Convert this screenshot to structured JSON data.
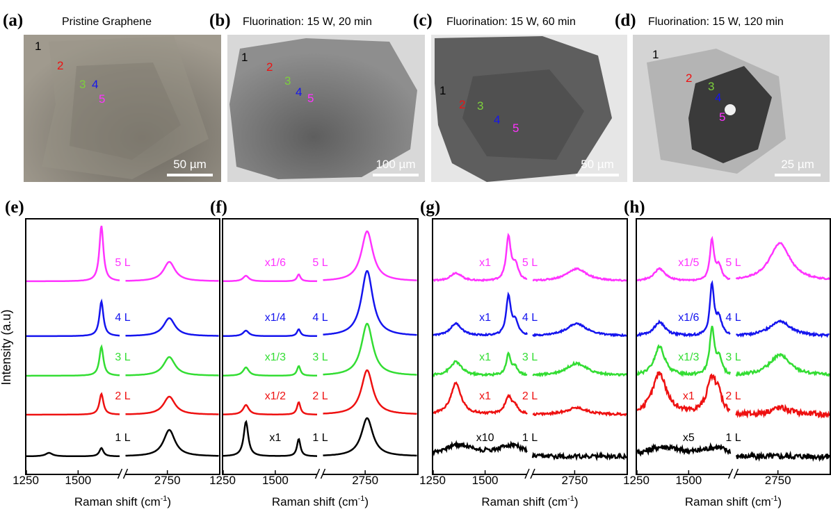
{
  "top_panels": [
    {
      "label": "(a)",
      "title": "Pristine Graphene",
      "scale_bar": "50 µm",
      "markers": [
        "1",
        "2",
        "3",
        "4",
        "5"
      ]
    },
    {
      "label": "(b)",
      "title": "Fluorination: 15 W, 20 min",
      "scale_bar": "100 µm",
      "markers": [
        "1",
        "2",
        "3",
        "4",
        "5"
      ]
    },
    {
      "label": "(c)",
      "title": "Fluorination: 15 W, 60 min",
      "scale_bar": "50 µm",
      "markers": [
        "1",
        "2",
        "3",
        "4",
        "5"
      ]
    },
    {
      "label": "(d)",
      "title": "Fluorination: 15 W, 120 min",
      "scale_bar": "25 µm",
      "markers": [
        "1",
        "2",
        "3",
        "4",
        "5"
      ]
    }
  ],
  "spectra_panels": [
    {
      "label": "(e)",
      "layers": [
        "5 L",
        "4 L",
        "3 L",
        "2 L",
        "1 L"
      ]
    },
    {
      "label": "(f)",
      "layers": [
        "5 L",
        "4 L",
        "3 L",
        "2 L",
        "1 L"
      ],
      "multipliers": [
        "x1/6",
        "x1/4",
        "x1/3",
        "x1/2",
        "x1"
      ]
    },
    {
      "label": "(g)",
      "layers": [
        "5 L",
        "4 L",
        "3 L",
        "2 L",
        "1 L"
      ],
      "multipliers": [
        "x1",
        "x1",
        "x1",
        "x1",
        "x10"
      ]
    },
    {
      "label": "(h)",
      "layers": [
        "5 L",
        "4 L",
        "3 L",
        "2 L",
        "1 L"
      ],
      "multipliers": [
        "x1/5",
        "x1/6",
        "x1/3",
        "x1",
        "x5"
      ]
    }
  ],
  "x_axis": {
    "ticks": [
      "1250",
      "1500",
      "2750"
    ],
    "title": "Raman shift (cm",
    "title_superscript": "-1",
    "title_end": ")"
  },
  "y_axis_title": "Intensity (a.u)"
}
